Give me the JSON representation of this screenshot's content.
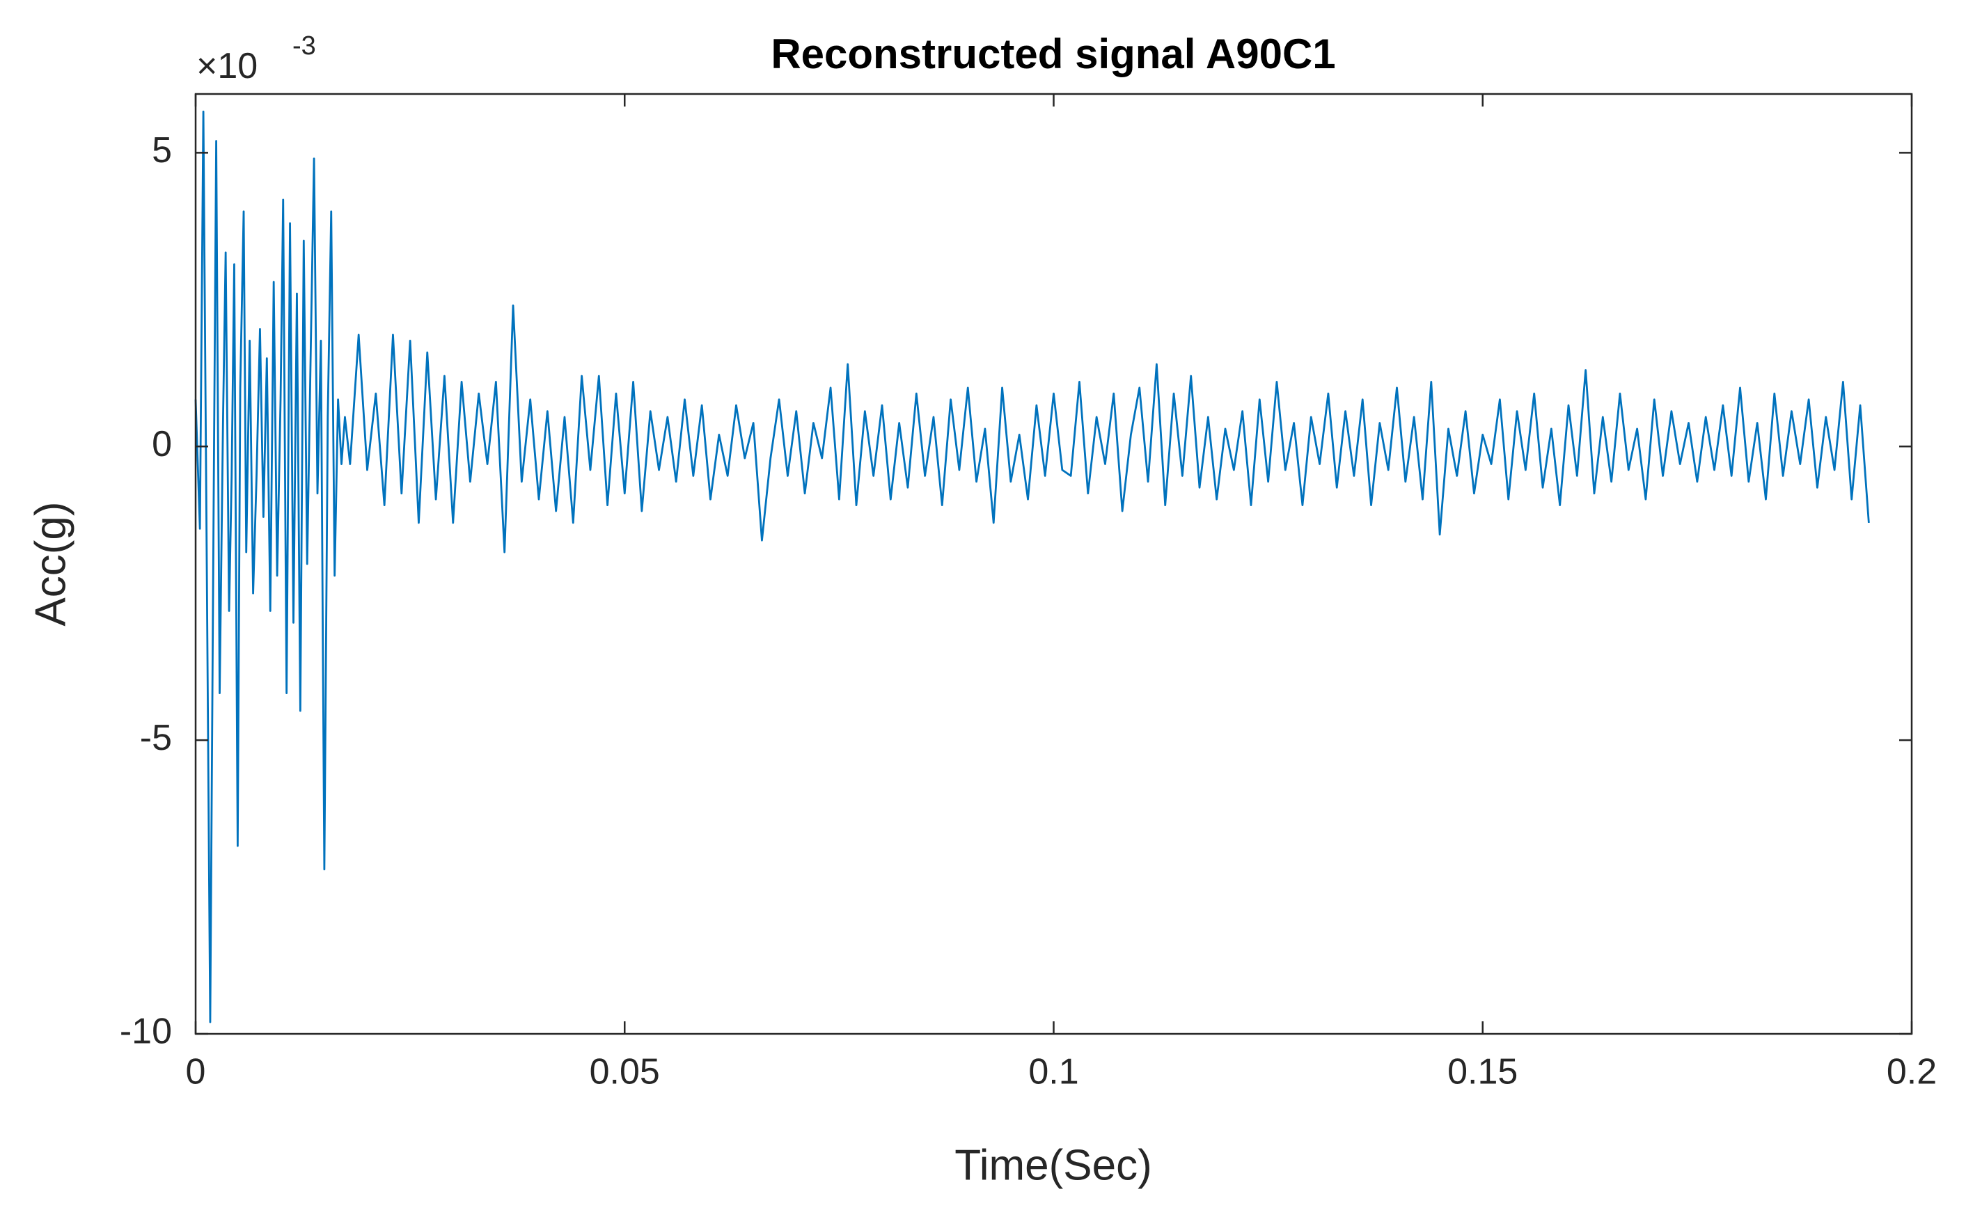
{
  "chart_data": {
    "type": "line",
    "title": "Reconstructed signal A90C1",
    "xlabel": "Time(Sec)",
    "ylabel": "Acc(g)",
    "y_exponent": {
      "base": "×10",
      "power": "-3"
    },
    "color": "#0072BD",
    "xlim": [
      0,
      0.2
    ],
    "xticks": [
      0,
      0.05,
      0.1,
      0.15,
      0.2
    ],
    "ylim": [
      -10,
      6
    ],
    "yticks": [
      -10,
      -5,
      0,
      5
    ],
    "x": [
      0,
      0.0005,
      0.0009,
      0.0013,
      0.0017,
      0.0021,
      0.0024,
      0.0028,
      0.0032,
      0.0035,
      0.0039,
      0.0042,
      0.0045,
      0.0049,
      0.0052,
      0.0056,
      0.0059,
      0.0063,
      0.0067,
      0.0071,
      0.0075,
      0.0079,
      0.0083,
      0.0087,
      0.0091,
      0.0095,
      0.0099,
      0.0102,
      0.0106,
      0.011,
      0.0114,
      0.0118,
      0.0122,
      0.0126,
      0.013,
      0.0134,
      0.0138,
      0.0142,
      0.0146,
      0.015,
      0.0154,
      0.0158,
      0.0162,
      0.0166,
      0.017,
      0.0174,
      0.018,
      0.019,
      0.02,
      0.021,
      0.022,
      0.023,
      0.024,
      0.025,
      0.026,
      0.027,
      0.028,
      0.029,
      0.03,
      0.031,
      0.032,
      0.033,
      0.034,
      0.035,
      0.036,
      0.037,
      0.038,
      0.039,
      0.04,
      0.041,
      0.042,
      0.043,
      0.044,
      0.045,
      0.046,
      0.047,
      0.048,
      0.049,
      0.05,
      0.051,
      0.052,
      0.053,
      0.054,
      0.055,
      0.056,
      0.057,
      0.058,
      0.059,
      0.06,
      0.061,
      0.062,
      0.063,
      0.064,
      0.065,
      0.066,
      0.067,
      0.068,
      0.069,
      0.07,
      0.071,
      0.072,
      0.073,
      0.074,
      0.075,
      0.076,
      0.077,
      0.078,
      0.079,
      0.08,
      0.081,
      0.082,
      0.083,
      0.084,
      0.085,
      0.086,
      0.087,
      0.088,
      0.089,
      0.09,
      0.091,
      0.092,
      0.093,
      0.094,
      0.095,
      0.096,
      0.097,
      0.098,
      0.099,
      0.1,
      0.101,
      0.102,
      0.103,
      0.104,
      0.105,
      0.106,
      0.107,
      0.108,
      0.109,
      0.11,
      0.111,
      0.112,
      0.113,
      0.114,
      0.115,
      0.116,
      0.117,
      0.118,
      0.119,
      0.12,
      0.121,
      0.122,
      0.123,
      0.124,
      0.125,
      0.126,
      0.127,
      0.128,
      0.129,
      0.13,
      0.131,
      0.132,
      0.133,
      0.134,
      0.135,
      0.136,
      0.137,
      0.138,
      0.139,
      0.14,
      0.141,
      0.142,
      0.143,
      0.144,
      0.145,
      0.146,
      0.147,
      0.148,
      0.149,
      0.15,
      0.151,
      0.152,
      0.153,
      0.154,
      0.155,
      0.156,
      0.157,
      0.158,
      0.159,
      0.16,
      0.161,
      0.162,
      0.163,
      0.164,
      0.165,
      0.166,
      0.167,
      0.168,
      0.169,
      0.17,
      0.171,
      0.172,
      0.173,
      0.174,
      0.175,
      0.176,
      0.177,
      0.178,
      0.179,
      0.18,
      0.181,
      0.182,
      0.183,
      0.184,
      0.185,
      0.186,
      0.187,
      0.188,
      0.189,
      0.19,
      0.191,
      0.192,
      0.193,
      0.194,
      0.195
    ],
    "values": [
      0.8,
      -1.4,
      5.7,
      -2,
      -9.8,
      -1,
      5.2,
      -4.2,
      0.5,
      3.3,
      -2.8,
      -0.5,
      3.1,
      -6.8,
      1,
      4,
      -1.8,
      1.8,
      -2.5,
      -0.5,
      2,
      -1.2,
      1.5,
      -2.8,
      2.8,
      -2.2,
      0.8,
      4.2,
      -4.2,
      3.8,
      -3,
      2.6,
      -4.5,
      3.5,
      -2,
      1.5,
      4.9,
      -0.8,
      1.8,
      -7.2,
      0.5,
      4,
      -2.2,
      0.8,
      -0.3,
      0.5,
      -0.3,
      1.9,
      -0.4,
      0.9,
      -1,
      1.9,
      -0.8,
      1.8,
      -1.3,
      1.6,
      -0.9,
      1.2,
      -1.3,
      1.1,
      -0.6,
      0.9,
      -0.3,
      1.1,
      -1.8,
      2.4,
      -0.6,
      0.8,
      -0.9,
      0.6,
      -1.1,
      0.5,
      -1.3,
      1.2,
      -0.4,
      1.2,
      -1,
      0.9,
      -0.8,
      1.1,
      -1.1,
      0.6,
      -0.4,
      0.5,
      -0.6,
      0.8,
      -0.5,
      0.7,
      -0.9,
      0.2,
      -0.5,
      0.7,
      -0.2,
      0.4,
      -1.6,
      -0.2,
      0.8,
      -0.5,
      0.6,
      -0.8,
      0.4,
      -0.2,
      1,
      -0.9,
      1.4,
      -1,
      0.6,
      -0.5,
      0.7,
      -0.9,
      0.4,
      -0.7,
      0.9,
      -0.5,
      0.5,
      -1,
      0.8,
      -0.4,
      1,
      -0.6,
      0.3,
      -1.3,
      1,
      -0.6,
      0.2,
      -0.9,
      0.7,
      -0.5,
      0.9,
      -0.4,
      -0.5,
      1.1,
      -0.8,
      0.5,
      -0.3,
      0.9,
      -1.1,
      0.2,
      1,
      -0.6,
      1.4,
      -1,
      0.9,
      -0.5,
      1.2,
      -0.7,
      0.5,
      -0.9,
      0.3,
      -0.4,
      0.6,
      -1,
      0.8,
      -0.6,
      1.1,
      -0.4,
      0.4,
      -1,
      0.5,
      -0.3,
      0.9,
      -0.7,
      0.6,
      -0.5,
      0.8,
      -1,
      0.4,
      -0.4,
      1,
      -0.6,
      0.5,
      -0.9,
      1.1,
      -1.5,
      0.3,
      -0.5,
      0.6,
      -0.8,
      0.2,
      -0.3,
      0.8,
      -0.9,
      0.6,
      -0.4,
      0.9,
      -0.7,
      0.3,
      -1,
      0.7,
      -0.5,
      1.3,
      -0.8,
      0.5,
      -0.6,
      0.9,
      -0.4,
      0.3,
      -0.9,
      0.8,
      -0.5,
      0.6,
      -0.3,
      0.4,
      -0.6,
      0.5,
      -0.4,
      0.7,
      -0.5,
      1,
      -0.6,
      0.4,
      -0.9,
      0.9,
      -0.5,
      0.6,
      -0.3,
      0.8,
      -0.7,
      0.5,
      -0.4,
      1.1,
      -0.9,
      0.7,
      -1.3
    ]
  }
}
